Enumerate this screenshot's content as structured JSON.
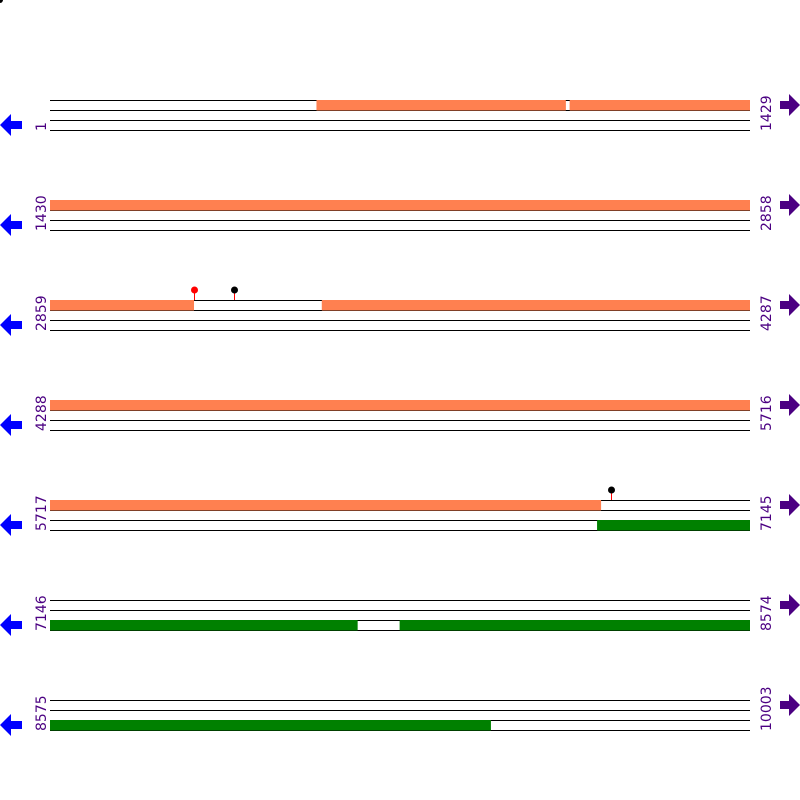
{
  "colors": {
    "orange": "#ff8050",
    "green": "#008000",
    "left_arrow": "#0000ff",
    "right_arrow": "#4b0082",
    "label": "#4b0082",
    "pin_red": "#ff0000",
    "pin_black": "#000000"
  },
  "icons": {
    "left": "arrow-left-icon",
    "right": "arrow-right-icon",
    "pin": "lollipop-marker-icon"
  },
  "rows": [
    {
      "start": "1",
      "end": "1429",
      "features": [
        {
          "track": 0,
          "from": 1,
          "to": 545,
          "kind": "gap"
        },
        {
          "track": 0,
          "from": 545,
          "to": 1054,
          "kind": "orange"
        },
        {
          "track": 0,
          "from": 1054,
          "to": 1062,
          "kind": "gap"
        },
        {
          "track": 0,
          "from": 1062,
          "to": 1429,
          "kind": "orange"
        }
      ],
      "pins": []
    },
    {
      "start": "1430",
      "end": "2858",
      "features": [
        {
          "track": 0,
          "from": 1430,
          "to": 2858,
          "kind": "orange"
        }
      ],
      "pins": []
    },
    {
      "start": "2859",
      "end": "4287",
      "features": [
        {
          "track": 0,
          "from": 2859,
          "to": 3153,
          "kind": "orange"
        },
        {
          "track": 0,
          "from": 3153,
          "to": 3414,
          "kind": "gap"
        },
        {
          "track": 0,
          "from": 3414,
          "to": 4287,
          "kind": "orange"
        }
      ],
      "pins": [
        {
          "pos": 3153,
          "head": "red"
        },
        {
          "pos": 3235,
          "head": "black"
        }
      ]
    },
    {
      "start": "4288",
      "end": "5716",
      "features": [
        {
          "track": 0,
          "from": 4288,
          "to": 5716,
          "kind": "orange"
        }
      ],
      "pins": []
    },
    {
      "start": "5717",
      "end": "7145",
      "features": [
        {
          "track": 0,
          "from": 5717,
          "to": 6842,
          "kind": "orange"
        },
        {
          "track": 0,
          "from": 6842,
          "to": 7145,
          "kind": "gap"
        },
        {
          "track": 2,
          "from": 5717,
          "to": 6834,
          "kind": "gap"
        },
        {
          "track": 2,
          "from": 6834,
          "to": 7145,
          "kind": "green"
        }
      ],
      "pins": [
        {
          "pos": 6862,
          "head": "black"
        }
      ]
    },
    {
      "start": "7146",
      "end": "8574",
      "features": [
        {
          "track": 2,
          "from": 7146,
          "to": 7774,
          "kind": "green"
        },
        {
          "track": 2,
          "from": 7774,
          "to": 7860,
          "kind": "gap"
        },
        {
          "track": 2,
          "from": 7860,
          "to": 8574,
          "kind": "green"
        }
      ],
      "pins": []
    },
    {
      "start": "8575",
      "end": "10003",
      "features": [
        {
          "track": 2,
          "from": 8575,
          "to": 9475,
          "kind": "green"
        },
        {
          "track": 2,
          "from": 9475,
          "to": 10003,
          "kind": "gap"
        }
      ],
      "pins": []
    }
  ]
}
